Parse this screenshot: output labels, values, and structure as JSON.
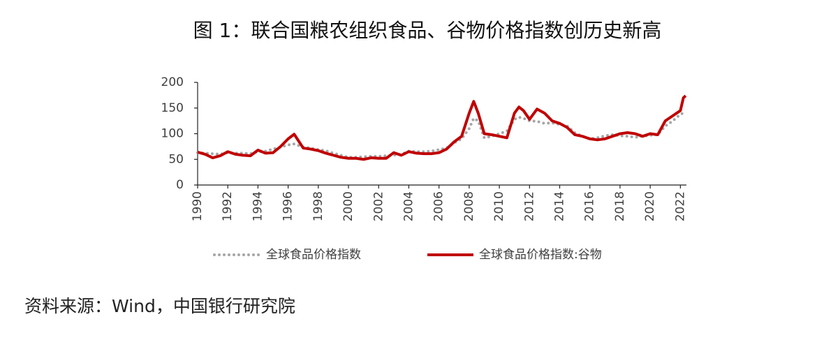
{
  "chart_data": {
    "type": "line",
    "title": "图 1：联合国粮农组织食品、谷物价格指数创历史新高",
    "source": "资料来源：Wind，中国银行研究院",
    "x": [
      1990,
      1990.5,
      1991,
      1991.5,
      1992,
      1992.5,
      1993,
      1993.5,
      1994,
      1994.5,
      1995,
      1995.5,
      1996,
      1996.4,
      1997,
      1997.5,
      1998,
      1998.5,
      1999,
      1999.5,
      2000,
      2000.5,
      2001,
      2001.5,
      2002,
      2002.5,
      2003,
      2003.5,
      2004,
      2004.5,
      2005,
      2005.5,
      2006,
      2006.5,
      2007,
      2007.5,
      2008,
      2008.3,
      2008.6,
      2009,
      2009.5,
      2010,
      2010.5,
      2011,
      2011.3,
      2011.6,
      2012,
      2012.5,
      2013,
      2013.5,
      2014,
      2014.5,
      2015,
      2015.5,
      2016,
      2016.5,
      2017,
      2017.5,
      2018,
      2018.5,
      2019,
      2019.5,
      2020,
      2020.5,
      2021,
      2021.5,
      2022,
      2022.2,
      2022.35
    ],
    "series": [
      {
        "name": "全球食品价格指数",
        "color": "#a6a6a6",
        "line_style": "dotted",
        "values": [
          63,
          62,
          61,
          60,
          63,
          62,
          62,
          61,
          65,
          66,
          70,
          74,
          78,
          80,
          74,
          72,
          69,
          67,
          62,
          58,
          54,
          54,
          55,
          56,
          56,
          57,
          58,
          60,
          66,
          65,
          65,
          66,
          69,
          72,
          82,
          90,
          110,
          130,
          125,
          92,
          95,
          100,
          105,
          128,
          132,
          130,
          125,
          124,
          120,
          121,
          118,
          115,
          102,
          95,
          90,
          92,
          96,
          98,
          96,
          95,
          93,
          95,
          97,
          98,
          115,
          125,
          138,
          140,
          142
        ]
      },
      {
        "name": "全球食品价格指数:谷物",
        "color": "#c00000",
        "line_style": "solid",
        "values": [
          64,
          60,
          53,
          57,
          65,
          60,
          58,
          57,
          68,
          62,
          63,
          75,
          90,
          99,
          72,
          70,
          67,
          62,
          58,
          54,
          52,
          52,
          50,
          53,
          52,
          52,
          63,
          58,
          65,
          62,
          61,
          61,
          63,
          70,
          84,
          95,
          140,
          163,
          140,
          100,
          98,
          95,
          92,
          140,
          152,
          145,
          128,
          148,
          140,
          125,
          120,
          112,
          98,
          95,
          90,
          88,
          90,
          95,
          100,
          102,
          100,
          95,
          100,
          98,
          125,
          135,
          145,
          170,
          174
        ]
      }
    ],
    "xlim": [
      1990,
      2022.4
    ],
    "xticks": [
      1990,
      1992,
      1994,
      1996,
      1998,
      2000,
      2002,
      2004,
      2006,
      2008,
      2010,
      2012,
      2014,
      2016,
      2018,
      2020,
      2022
    ],
    "ylim": [
      0,
      200
    ],
    "yticks": [
      0,
      50,
      100,
      150,
      200
    ],
    "grid": false
  }
}
